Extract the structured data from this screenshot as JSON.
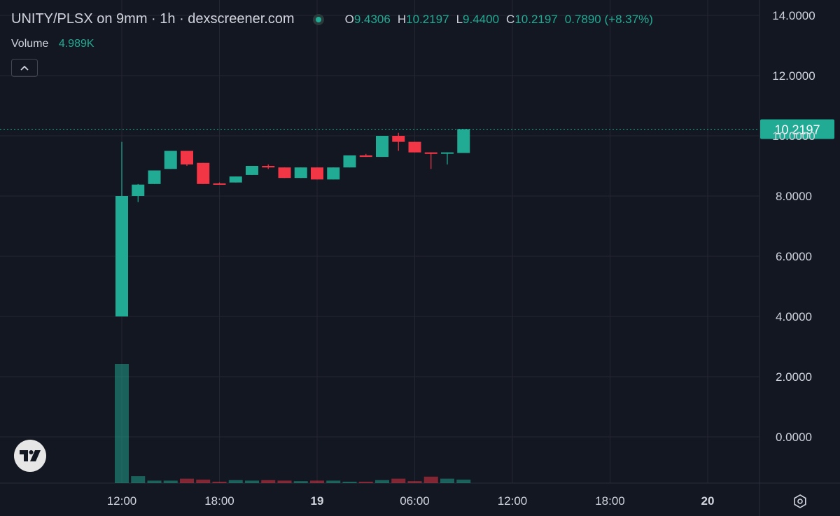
{
  "header": {
    "symbol_title": "UNITY/PLSX on 9mm · 1h · dexscreener.com",
    "ohlc": {
      "open_label": "O",
      "open": "9.4306",
      "high_label": "H",
      "high": "10.2197",
      "low_label": "L",
      "low": "9.4400",
      "close_label": "C",
      "close": "10.2197",
      "change": "0.7890 (+8.37%)"
    }
  },
  "volume_legend": {
    "label": "Volume",
    "value": "4.989K"
  },
  "colors": {
    "up": "#22ab94",
    "down": "#f23645",
    "background": "#131722",
    "grid": "#242733",
    "text": "#d1d4dc"
  },
  "icons": {
    "collapse": "chevron-up-icon",
    "logo": "tradingview-logo-icon",
    "settings": "settings-gear-icon"
  },
  "chart_data": {
    "type": "candlestick",
    "price_axis": {
      "min": -1.5,
      "max": 14.5,
      "ticks": [
        "14.0000",
        "12.0000",
        "10.0000",
        "8.0000",
        "6.0000",
        "4.0000",
        "2.0000",
        "0.0000"
      ],
      "tick_values": [
        14,
        12,
        10,
        8,
        6,
        4,
        2,
        0
      ]
    },
    "time_axis": {
      "ticks": [
        {
          "label": "12:00",
          "index": 0
        },
        {
          "label": "18:00",
          "index": 6
        },
        {
          "label": "19",
          "index": 12,
          "bold": true
        },
        {
          "label": "06:00",
          "index": 18
        },
        {
          "label": "12:00",
          "index": 24
        },
        {
          "label": "18:00",
          "index": 30
        },
        {
          "label": "20",
          "index": 36,
          "bold": true
        }
      ]
    },
    "last_price": {
      "value": 10.2197,
      "label": "10.2197"
    },
    "candles": [
      {
        "o": 4.0,
        "h": 9.8,
        "l": 4.0,
        "c": 8.0
      },
      {
        "o": 8.0,
        "h": 8.4,
        "l": 7.8,
        "c": 8.38
      },
      {
        "o": 8.4,
        "h": 8.85,
        "l": 8.4,
        "c": 8.85
      },
      {
        "o": 8.9,
        "h": 9.5,
        "l": 8.9,
        "c": 9.5
      },
      {
        "o": 9.5,
        "h": 9.5,
        "l": 9.0,
        "c": 9.05
      },
      {
        "o": 9.1,
        "h": 9.1,
        "l": 8.4,
        "c": 8.4
      },
      {
        "o": 8.42,
        "h": 8.45,
        "l": 8.38,
        "c": 8.38
      },
      {
        "o": 8.45,
        "h": 8.65,
        "l": 8.45,
        "c": 8.65
      },
      {
        "o": 8.7,
        "h": 9.0,
        "l": 8.7,
        "c": 9.0
      },
      {
        "o": 9.0,
        "h": 9.05,
        "l": 8.9,
        "c": 8.95
      },
      {
        "o": 8.95,
        "h": 8.95,
        "l": 8.6,
        "c": 8.6
      },
      {
        "o": 8.6,
        "h": 8.95,
        "l": 8.6,
        "c": 8.95
      },
      {
        "o": 8.95,
        "h": 8.95,
        "l": 8.55,
        "c": 8.55
      },
      {
        "o": 8.55,
        "h": 8.95,
        "l": 8.55,
        "c": 8.95
      },
      {
        "o": 8.95,
        "h": 9.35,
        "l": 8.95,
        "c": 9.35
      },
      {
        "o": 9.35,
        "h": 9.4,
        "l": 9.3,
        "c": 9.3
      },
      {
        "o": 9.3,
        "h": 10.0,
        "l": 9.3,
        "c": 10.0
      },
      {
        "o": 10.0,
        "h": 10.1,
        "l": 9.5,
        "c": 9.8
      },
      {
        "o": 9.8,
        "h": 9.8,
        "l": 9.45,
        "c": 9.45
      },
      {
        "o": 9.45,
        "h": 9.45,
        "l": 8.9,
        "c": 9.4
      },
      {
        "o": 9.43,
        "h": 9.45,
        "l": 9.05,
        "c": 9.45
      },
      {
        "o": 9.43,
        "h": 10.22,
        "l": 9.44,
        "c": 10.22
      }
    ],
    "volumes": [
      2400,
      140,
      50,
      50,
      90,
      70,
      10,
      60,
      50,
      60,
      50,
      40,
      50,
      50,
      20,
      10,
      60,
      90,
      40,
      130,
      90,
      70
    ],
    "volume_max": 2400
  }
}
